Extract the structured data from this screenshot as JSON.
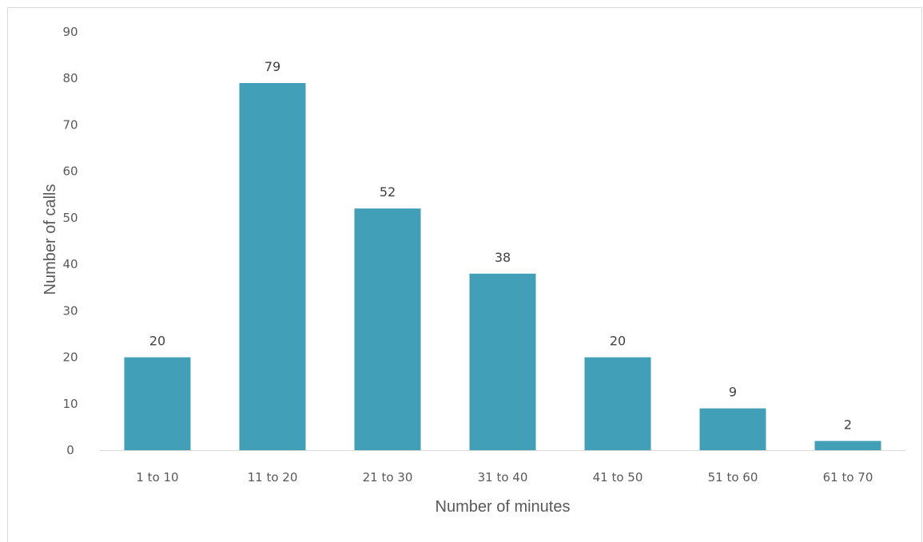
{
  "chart_data": {
    "type": "bar",
    "categories": [
      "1 to 10",
      "11 to 20",
      "21 to 30",
      "31 to 40",
      "41 to 50",
      "51 to 60",
      "61 to 70"
    ],
    "values": [
      20,
      79,
      52,
      38,
      20,
      9,
      2
    ],
    "xlabel": "Number of minutes",
    "ylabel": "Number of calls",
    "ylim": [
      0,
      90
    ],
    "yticks": [
      0,
      10,
      20,
      30,
      40,
      50,
      60,
      70,
      80,
      90
    ],
    "data_labels": true,
    "grid": false,
    "legend": "none",
    "bar_color": "#429FB8",
    "axis_color": "#d9d9d9"
  }
}
